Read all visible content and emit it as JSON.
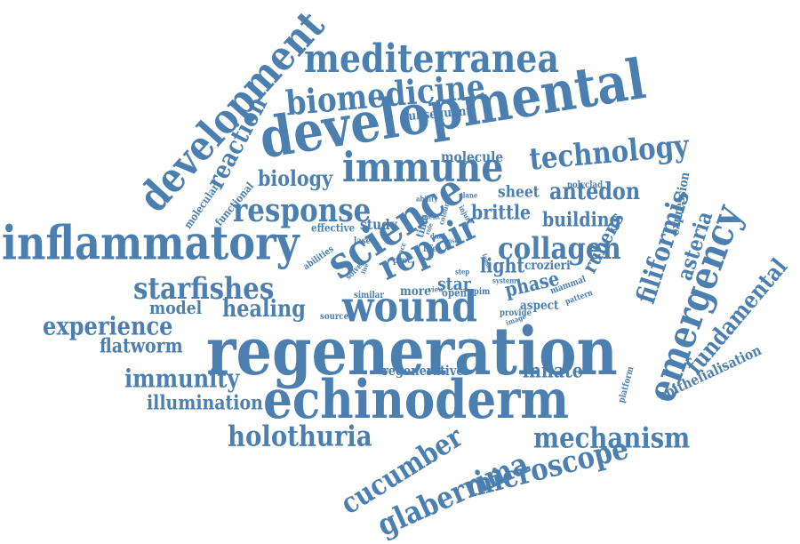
{
  "color": "#4a7fb0",
  "words": [
    "regeneration",
    "echinoderm",
    "developmental",
    "inflammatory",
    "development",
    "immune",
    "mediterranea",
    "biomedicine",
    "science",
    "technology",
    "wound",
    "response",
    "repair",
    "collagen",
    "emergency",
    "starfishes",
    "holothuria",
    "mechanism",
    "microscope",
    "glaberrima",
    "cucumber",
    "filiformis",
    "fundamental",
    "experience",
    "immunity",
    "healing",
    "model",
    "antedon",
    "brittle",
    "building",
    "reaction",
    "biology",
    "flatworm",
    "illumination",
    "innate",
    "regenerative",
    "epithelialisation",
    "asteria",
    "rubens",
    "phase",
    "light",
    "sheet",
    "crozieri",
    "aspect",
    "molecule",
    "star",
    "study",
    "more",
    "open",
    "spim",
    "provide",
    "subsequent",
    "polyclad",
    "expression",
    "platform",
    "functional",
    "molecular",
    "abilities",
    "effective",
    "laser",
    "source",
    "similar",
    "solved",
    "ability",
    "event",
    "time",
    "life",
    "colour",
    "dual",
    "injury",
    "plane",
    "step",
    "mammal",
    "pattern",
    "image",
    "view",
    "user",
    "system",
    "lapse",
    "proc",
    "acc",
    "live",
    "role"
  ]
}
